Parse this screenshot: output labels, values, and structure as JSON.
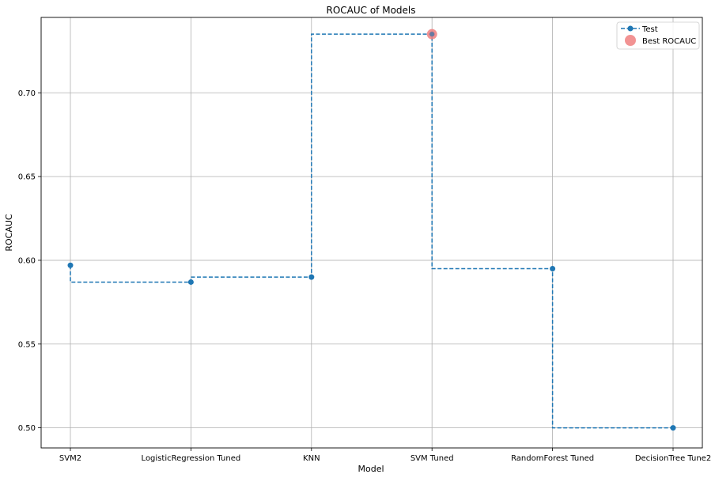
{
  "chart_data": {
    "type": "line",
    "title": "ROCAUC of Models",
    "xlabel": "Model",
    "ylabel": "ROCAUC",
    "categories": [
      "SVM2",
      "LogisticRegression Tuned",
      "KNN",
      "SVM Tuned",
      "RandomForest Tuned",
      "DecisionTree Tune2"
    ],
    "series": [
      {
        "name": "Test",
        "values": [
          0.597,
          0.587,
          0.59,
          0.735,
          0.595,
          0.5
        ],
        "color": "#1f77b4",
        "style": "dashed",
        "drawstyle": "steps-pre",
        "marker": "circle"
      }
    ],
    "highlight": {
      "name": "Best ROCAUC",
      "category": "SVM Tuned",
      "value": 0.735,
      "color": "#f08080"
    },
    "ylim": [
      0.488,
      0.745
    ],
    "yticks": [
      "0.50",
      "0.55",
      "0.60",
      "0.65",
      "0.70"
    ],
    "grid": true,
    "legend": "top-right"
  }
}
